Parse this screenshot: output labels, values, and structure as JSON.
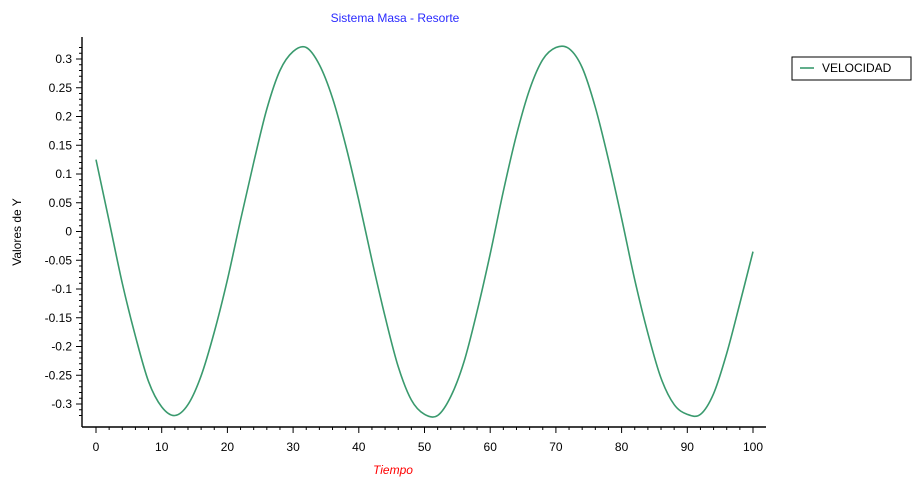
{
  "chart_data": {
    "type": "line",
    "title": "Sistema Masa - Resorte",
    "xlabel": "Tiempo",
    "ylabel": "Valores de Y",
    "xlim": [
      0,
      100
    ],
    "ylim": [
      -0.32,
      0.32
    ],
    "x_ticks": [
      "0",
      "10",
      "20",
      "30",
      "40",
      "50",
      "60",
      "70",
      "80",
      "90",
      "100"
    ],
    "y_ticks": [
      "0.3",
      "0.25",
      "0.2",
      "0.15",
      "0.1",
      "0.05",
      "0",
      "-0.05",
      "-0.1",
      "-0.15",
      "-0.2",
      "-0.25",
      "-0.3"
    ],
    "legend_position": "top-right",
    "grid": false,
    "colors": {
      "series": "#3a9a6e",
      "title": "#2a2aff",
      "xlabel": "#ff0000",
      "ylabel": "#000000",
      "axis": "#000000"
    },
    "series": [
      {
        "name": "VELOCIDAD",
        "x": [
          0,
          2,
          4,
          6,
          8,
          10,
          12,
          14,
          16,
          18,
          20,
          22,
          24,
          26,
          28,
          30,
          32,
          34,
          36,
          38,
          40,
          42,
          44,
          46,
          48,
          50,
          52,
          54,
          56,
          58,
          60,
          62,
          64,
          66,
          68,
          70,
          72,
          74,
          76,
          78,
          80,
          82,
          84,
          86,
          88,
          90,
          92,
          94,
          96,
          98,
          100
        ],
        "values": [
          0.125,
          0.018,
          -0.09,
          -0.182,
          -0.261,
          -0.305,
          -0.32,
          -0.301,
          -0.251,
          -0.175,
          -0.084,
          0.02,
          0.12,
          0.213,
          0.28,
          0.313,
          0.32,
          0.29,
          0.232,
          0.15,
          0.054,
          -0.05,
          -0.148,
          -0.235,
          -0.293,
          -0.318,
          -0.32,
          -0.287,
          -0.227,
          -0.139,
          -0.039,
          0.07,
          0.168,
          0.247,
          0.299,
          0.32,
          0.318,
          0.285,
          0.216,
          0.125,
          0.023,
          -0.084,
          -0.177,
          -0.255,
          -0.301,
          -0.318,
          -0.318,
          -0.282,
          -0.212,
          -0.125,
          -0.035
        ]
      }
    ]
  }
}
